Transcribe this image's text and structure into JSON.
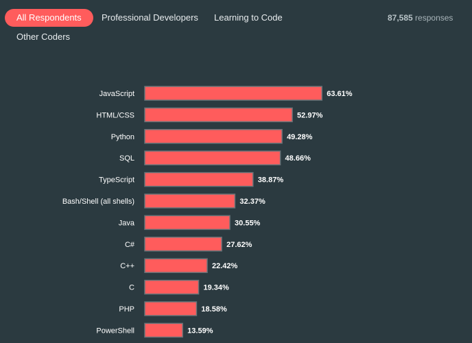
{
  "tabs": [
    {
      "label": "All Respondents",
      "active": true
    },
    {
      "label": "Professional Developers",
      "active": false
    },
    {
      "label": "Learning to Code",
      "active": false
    },
    {
      "label": "Other Coders",
      "active": false
    }
  ],
  "responses": {
    "count": "87,585",
    "suffix": "responses"
  },
  "colors": {
    "bar": "#ff5c5c",
    "background": "#2b3a40",
    "active_tab": "#ff5c5c"
  },
  "chart_data": {
    "type": "bar",
    "orientation": "horizontal",
    "categories": [
      "JavaScript",
      "HTML/CSS",
      "Python",
      "SQL",
      "TypeScript",
      "Bash/Shell (all shells)",
      "Java",
      "C#",
      "C++",
      "C",
      "PHP",
      "PowerShell"
    ],
    "values": [
      63.61,
      52.97,
      49.28,
      48.66,
      38.87,
      32.37,
      30.55,
      27.62,
      22.42,
      19.34,
      18.58,
      13.59
    ],
    "value_labels": [
      "63.61%",
      "52.97%",
      "49.28%",
      "48.66%",
      "38.87%",
      "32.37%",
      "30.55%",
      "27.62%",
      "22.42%",
      "19.34%",
      "18.58%",
      "13.59%"
    ],
    "title": "",
    "xlabel": "",
    "ylabel": "",
    "grid": false,
    "legend": "none"
  }
}
